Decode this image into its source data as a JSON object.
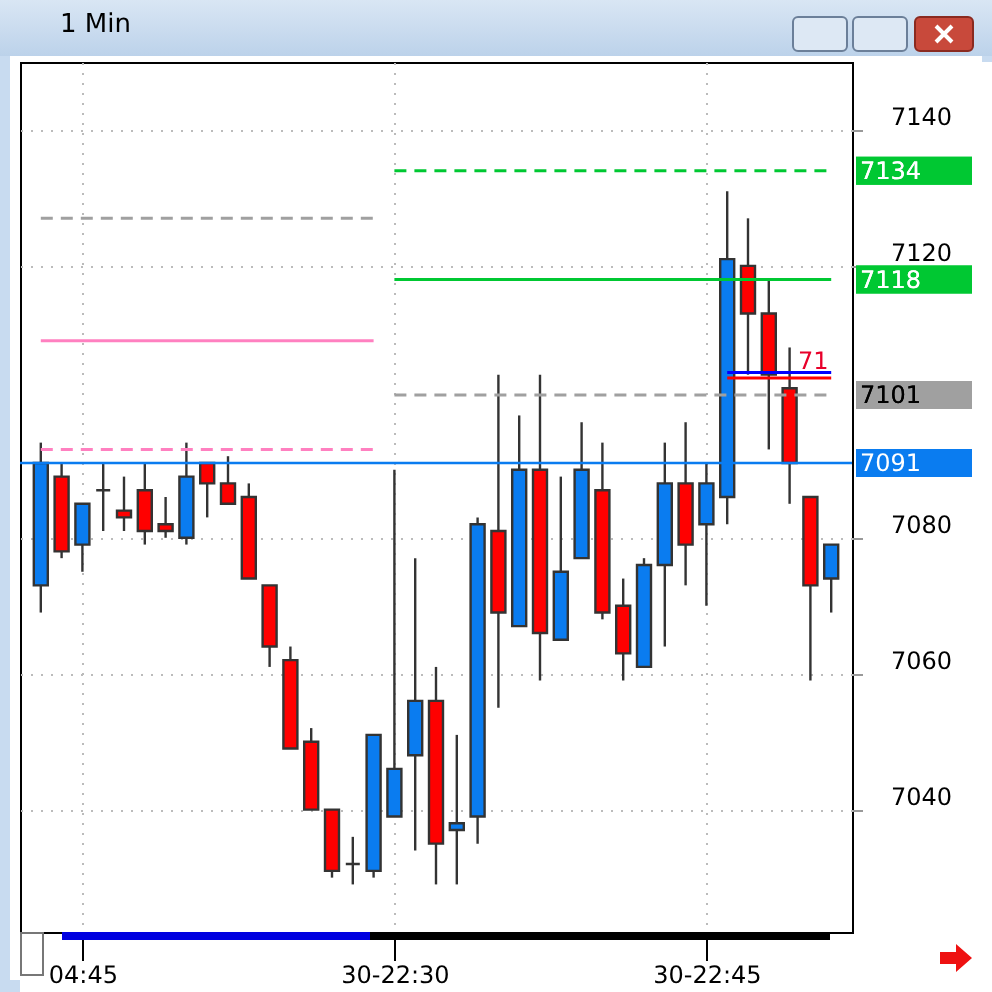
{
  "chart_data": {
    "type": "candlestick",
    "title": "1 Min",
    "categories": [
      null,
      null,
      "04:45",
      null,
      null,
      null,
      null,
      null,
      null,
      null,
      null,
      null,
      null,
      null,
      null,
      null,
      null,
      "30-22:30",
      null,
      null,
      null,
      null,
      null,
      null,
      null,
      null,
      null,
      null,
      null,
      null,
      null,
      null,
      "30-22:45",
      null,
      null,
      null,
      null,
      null,
      null
    ],
    "ohlc": [
      [
        7073,
        7094,
        7069,
        7091
      ],
      [
        7089,
        7091,
        7077,
        7078
      ],
      [
        7079,
        7085,
        7075,
        7085
      ],
      [
        7087,
        7091,
        7081,
        7087
      ],
      [
        7084,
        7089,
        7081,
        7083
      ],
      [
        7087,
        7091,
        7079,
        7081
      ],
      [
        7082,
        7086,
        7080,
        7081
      ],
      [
        7080,
        7094,
        7079,
        7089
      ],
      [
        7091,
        7091,
        7083,
        7088
      ],
      [
        7088,
        7092,
        7085,
        7085
      ],
      [
        7086,
        7088,
        7074,
        7074
      ],
      [
        7073,
        7073,
        7061,
        7064
      ],
      [
        7062,
        7064,
        7049,
        7049
      ],
      [
        7050,
        7052,
        7040,
        7040
      ],
      [
        7040,
        7040,
        7030,
        7031
      ],
      [
        7032,
        7036,
        7029,
        7032
      ],
      [
        7031,
        7051,
        7030,
        7051
      ],
      [
        7039,
        7090,
        7039,
        7046
      ],
      [
        7048,
        7077,
        7034,
        7056
      ],
      [
        7056,
        7061,
        7029,
        7035
      ],
      [
        7037,
        7051,
        7029,
        7038
      ],
      [
        7039,
        7083,
        7035,
        7082
      ],
      [
        7081,
        7104,
        7055,
        7069
      ],
      [
        7067,
        7098,
        7067,
        7090
      ],
      [
        7090,
        7104,
        7059,
        7066
      ],
      [
        7065,
        7089,
        7065,
        7075
      ],
      [
        7077,
        7097,
        7077,
        7090
      ],
      [
        7087,
        7094,
        7068,
        7069
      ],
      [
        7070,
        7074,
        7059,
        7063
      ],
      [
        7061,
        7077,
        7061,
        7076
      ],
      [
        7076,
        7094,
        7064,
        7088
      ],
      [
        7088,
        7097,
        7073,
        7079
      ],
      [
        7082,
        7091,
        7070,
        7088
      ],
      [
        7086,
        7131,
        7082,
        7121
      ],
      [
        7120,
        7127,
        7104,
        7113
      ],
      [
        7113,
        7118,
        7093,
        7104
      ],
      [
        7102,
        7108,
        7085,
        7091
      ],
      [
        7086,
        7086,
        7059,
        7073
      ],
      [
        7074,
        7079,
        7069,
        7079
      ]
    ],
    "colors": [
      "#0a7cf0",
      "#ff0000",
      "#0a7cf0",
      "#333333",
      "#ff0000",
      "#ff0000",
      "#ff0000",
      "#0a7cf0",
      "#ff0000",
      "#ff0000",
      "#ff0000",
      "#ff0000",
      "#ff0000",
      "#ff0000",
      "#ff0000",
      "#333333",
      "#0a7cf0",
      "#0a7cf0",
      "#0a7cf0",
      "#ff0000",
      "#0a7cf0",
      "#0a7cf0",
      "#ff0000",
      "#0a7cf0",
      "#ff0000",
      "#0a7cf0",
      "#0a7cf0",
      "#ff0000",
      "#ff0000",
      "#0a7cf0",
      "#0a7cf0",
      "#ff0000",
      "#0a7cf0",
      "#0a7cf0",
      "#ff0000",
      "#ff0000",
      "#ff0000",
      "#ff0000",
      "#0a7cf0"
    ],
    "series": [
      {
        "type": "line",
        "color": "#ff80c0",
        "line_style": "solid",
        "values": [
          7109,
          7109,
          7109,
          7109,
          7109,
          7109,
          7109,
          7109,
          7109,
          7109,
          7109,
          7109,
          7109,
          7109,
          7109,
          7109,
          7109,
          null,
          null,
          null,
          null,
          null,
          null,
          null,
          null,
          null,
          null,
          null,
          null,
          null,
          null,
          null,
          null,
          null,
          null,
          null,
          null,
          null,
          null
        ]
      },
      {
        "type": "line",
        "color": "#ff80c0",
        "line_style": "dashed",
        "values": [
          7093,
          7093,
          7093,
          7093,
          7093,
          7093,
          7093,
          7093,
          7093,
          7093,
          7093,
          7093,
          7093,
          7093,
          7093,
          7093,
          7093,
          null,
          null,
          null,
          null,
          null,
          null,
          null,
          null,
          null,
          null,
          null,
          null,
          null,
          null,
          null,
          null,
          null,
          null,
          null,
          null,
          null,
          null
        ]
      },
      {
        "type": "line",
        "color": "#a0a0a0",
        "line_style": "dashed",
        "values": [
          7127,
          7127,
          7127,
          7127,
          7127,
          7127,
          7127,
          7127,
          7127,
          7127,
          7127,
          7127,
          7127,
          7127,
          7127,
          7127,
          7127,
          null,
          null,
          null,
          null,
          null,
          null,
          null,
          null,
          null,
          null,
          null,
          null,
          null,
          null,
          null,
          null,
          null,
          null,
          null,
          null,
          null,
          null
        ]
      },
      {
        "type": "line",
        "color": "#00c832",
        "line_style": "dashed",
        "values": [
          null,
          null,
          null,
          null,
          null,
          null,
          null,
          null,
          null,
          null,
          null,
          null,
          null,
          null,
          null,
          null,
          null,
          7134,
          7134,
          7134,
          7134,
          7134,
          7134,
          7134,
          7134,
          7134,
          7134,
          7134,
          7134,
          7134,
          7134,
          7134,
          7134,
          7134,
          7134,
          7134,
          7134,
          7134,
          7134
        ],
        "value_labels": [
          null,
          null,
          null,
          null,
          null,
          null,
          null,
          null,
          null,
          null,
          null,
          null,
          null,
          null,
          null,
          null,
          null,
          null,
          null,
          null,
          null,
          null,
          null,
          null,
          null,
          null,
          null,
          null,
          null,
          null,
          null,
          null,
          null,
          null,
          null,
          null,
          null,
          null,
          "7134"
        ]
      },
      {
        "type": "line",
        "color": "#00c832",
        "line_style": "solid",
        "values": [
          null,
          null,
          null,
          null,
          null,
          null,
          null,
          null,
          null,
          null,
          null,
          null,
          null,
          null,
          null,
          null,
          null,
          7118,
          7118,
          7118,
          7118,
          7118,
          7118,
          7118,
          7118,
          7118,
          7118,
          7118,
          7118,
          7118,
          7118,
          7118,
          7118,
          7118,
          7118,
          7118,
          7118,
          7118,
          7118
        ],
        "value_labels": [
          null,
          null,
          null,
          null,
          null,
          null,
          null,
          null,
          null,
          null,
          null,
          null,
          null,
          null,
          null,
          null,
          null,
          null,
          null,
          null,
          null,
          null,
          null,
          null,
          null,
          null,
          null,
          null,
          null,
          null,
          null,
          null,
          null,
          null,
          null,
          null,
          null,
          null,
          "7118"
        ]
      },
      {
        "type": "line",
        "color": "#a0a0a0",
        "line_style": "dashed",
        "values": [
          null,
          null,
          null,
          null,
          null,
          null,
          null,
          null,
          null,
          null,
          null,
          null,
          null,
          null,
          null,
          null,
          null,
          7101,
          7101,
          7101,
          7101,
          7101,
          7101,
          7101,
          7101,
          7101,
          7101,
          7101,
          7101,
          7101,
          7101,
          7101,
          7101,
          7101,
          7101,
          7101,
          7101,
          7101,
          7101
        ],
        "value_labels": [
          null,
          null,
          null,
          null,
          null,
          null,
          null,
          null,
          null,
          null,
          null,
          null,
          null,
          null,
          null,
          null,
          null,
          null,
          null,
          null,
          null,
          null,
          null,
          null,
          null,
          null,
          null,
          null,
          null,
          null,
          null,
          null,
          null,
          null,
          null,
          null,
          null,
          null,
          "7101"
        ]
      },
      {
        "type": "line",
        "color": "#0000ff",
        "line_style": "solid",
        "values": [
          null,
          null,
          null,
          null,
          null,
          null,
          null,
          null,
          null,
          null,
          null,
          null,
          null,
          null,
          null,
          null,
          null,
          null,
          null,
          null,
          null,
          null,
          null,
          null,
          null,
          null,
          null,
          null,
          null,
          null,
          null,
          null,
          null,
          7104.3,
          7104.3,
          7104.3,
          7104.3,
          7104.3,
          7104.3
        ]
      },
      {
        "type": "line",
        "color": "#ff0000",
        "line_style": "solid",
        "values": [
          null,
          null,
          null,
          null,
          null,
          null,
          null,
          null,
          null,
          null,
          null,
          null,
          null,
          null,
          null,
          null,
          null,
          null,
          null,
          null,
          null,
          null,
          null,
          null,
          null,
          null,
          null,
          null,
          null,
          null,
          null,
          null,
          null,
          7103.5,
          7103.5,
          7103.5,
          7103.5,
          7103.5,
          7103.5
        ]
      }
    ],
    "ref_lines": [
      {
        "axis": "y",
        "value": 7091,
        "label": "7091",
        "color": "#0a7cf0",
        "line_style": "solid"
      }
    ],
    "annotations": [
      "71"
    ],
    "ylim": [
      7022,
      7150
    ],
    "yticks": [
      7040,
      7060,
      7080,
      7120,
      7140
    ],
    "grid": true
  }
}
